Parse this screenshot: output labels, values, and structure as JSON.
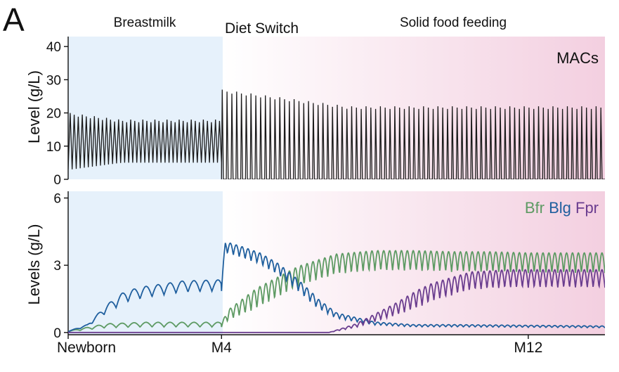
{
  "panel_label": "A",
  "phases": {
    "breastmilk": "Breastmilk",
    "diet_switch": "Diet Switch",
    "solid": "Solid food feeding"
  },
  "colors": {
    "breastmilk_bg": "#e6f1fb",
    "solid_bg": "#f3cfe0",
    "macs": "#1a1a1a",
    "bfr": "#5d9a63",
    "blg": "#1f5f9e",
    "fpr": "#6a3d8f"
  },
  "chart_data": [
    {
      "type": "line",
      "title": "MACs",
      "xlabel": "",
      "ylabel": "Level (g/L)",
      "x_ticks": [],
      "y_ticks": [
        0,
        10,
        20,
        30,
        40
      ],
      "ylim": [
        0,
        43
      ],
      "xlim": [
        0,
        14
      ],
      "series": [
        {
          "name": "",
          "pattern": "oscillating",
          "segments": [
            {
              "x_start": 0,
              "x_end": 4,
              "cycles": 38,
              "peak": [
                20,
                18
              ],
              "trough": [
                3,
                5
              ]
            },
            {
              "x_start": 4,
              "x_end": 14,
              "cycles": 80,
              "peak": [
                27,
                22
              ],
              "trough": [
                0,
                0
              ]
            }
          ]
        }
      ]
    },
    {
      "type": "line",
      "title": "",
      "xlabel": "",
      "ylabel": "Levels (g/L)",
      "x_ticks": [
        "Newborn",
        "M4",
        "M12"
      ],
      "x_tick_values": [
        0,
        4,
        12
      ],
      "y_ticks": [
        0,
        3,
        6
      ],
      "ylim": [
        -0.1,
        6.3
      ],
      "xlim": [
        0,
        14
      ],
      "legend": [
        "Bfr",
        "Blg",
        "Fpr"
      ],
      "legend_position": "top-right",
      "series": [
        {
          "name": "Bfr",
          "x": [
            0,
            1,
            2,
            3,
            4,
            4.2,
            5,
            6,
            7,
            8,
            9,
            10,
            11,
            12,
            13,
            14
          ],
          "y": [
            0.05,
            0.3,
            0.35,
            0.35,
            0.35,
            0.8,
            1.6,
            2.5,
            3.05,
            3.2,
            3.2,
            3.15,
            3.15,
            3.1,
            3.1,
            3.1
          ],
          "amp": 0.45
        },
        {
          "name": "Blg",
          "x": [
            0,
            0.5,
            1,
            1.5,
            2,
            3,
            4,
            4.1,
            4.5,
            5,
            5.5,
            6,
            6.5,
            7,
            8,
            9,
            10,
            14
          ],
          "y": [
            0.05,
            0.3,
            1.05,
            1.6,
            1.8,
            2.05,
            2.1,
            3.8,
            3.6,
            3.3,
            2.8,
            2.1,
            1.3,
            0.75,
            0.4,
            0.3,
            0.3,
            0.25
          ],
          "amp": 0.25
        },
        {
          "name": "Fpr",
          "x": [
            0,
            6.8,
            7.5,
            8.5,
            9.5,
            10.5,
            11.5,
            12.5,
            13.5,
            14
          ],
          "y": [
            0,
            0,
            0.3,
            1.0,
            1.8,
            2.3,
            2.4,
            2.4,
            2.4,
            2.4
          ],
          "amp": 0.4
        }
      ]
    }
  ]
}
